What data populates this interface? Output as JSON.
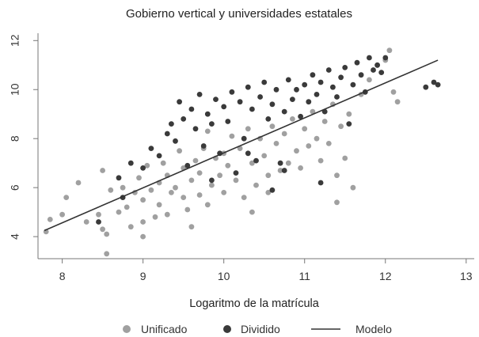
{
  "chart_data": {
    "type": "scatter",
    "title": "Gobierno vertical y universidades estatales",
    "xlabel": "Logaritmo de la matrícula",
    "ylabel": "",
    "xlim": [
      7.7,
      13.1
    ],
    "ylim": [
      3.1,
      12.3
    ],
    "xticks": [
      "8",
      "9",
      "10",
      "11",
      "12",
      "13"
    ],
    "xtick_values": [
      8,
      9,
      10,
      11,
      12,
      13
    ],
    "yticks": [
      "4",
      "6",
      "8",
      "10",
      "12"
    ],
    "ytick_values": [
      4,
      6,
      8,
      10,
      12
    ],
    "grid": false,
    "legend_position": "bottom",
    "series": [
      {
        "name": "Unificado",
        "color": "#a0a0a0",
        "points": [
          [
            7.8,
            4.2
          ],
          [
            7.85,
            4.7
          ],
          [
            8.0,
            4.9
          ],
          [
            8.05,
            5.6
          ],
          [
            8.2,
            6.2
          ],
          [
            8.3,
            4.6
          ],
          [
            8.45,
            4.9
          ],
          [
            8.5,
            4.3
          ],
          [
            8.55,
            4.1
          ],
          [
            8.55,
            3.3
          ],
          [
            8.6,
            5.9
          ],
          [
            8.7,
            5.0
          ],
          [
            8.75,
            6.0
          ],
          [
            8.8,
            5.2
          ],
          [
            8.85,
            4.4
          ],
          [
            8.9,
            5.8
          ],
          [
            8.95,
            6.4
          ],
          [
            9.0,
            5.5
          ],
          [
            9.0,
            4.6
          ],
          [
            9.05,
            6.9
          ],
          [
            9.1,
            5.9
          ],
          [
            9.15,
            4.8
          ],
          [
            9.2,
            6.2
          ],
          [
            9.2,
            5.3
          ],
          [
            9.25,
            7.0
          ],
          [
            9.3,
            6.5
          ],
          [
            9.3,
            4.9
          ],
          [
            9.35,
            5.8
          ],
          [
            9.4,
            6.0
          ],
          [
            9.45,
            7.5
          ],
          [
            9.5,
            5.6
          ],
          [
            9.5,
            6.8
          ],
          [
            9.55,
            5.1
          ],
          [
            9.6,
            6.3
          ],
          [
            9.65,
            7.1
          ],
          [
            9.7,
            5.7
          ],
          [
            9.7,
            6.6
          ],
          [
            9.75,
            7.6
          ],
          [
            9.8,
            5.3
          ],
          [
            9.85,
            6.1
          ],
          [
            9.9,
            7.2
          ],
          [
            9.95,
            6.5
          ],
          [
            10.0,
            5.8
          ],
          [
            10.0,
            7.4
          ],
          [
            10.05,
            6.9
          ],
          [
            10.1,
            8.1
          ],
          [
            10.15,
            6.3
          ],
          [
            10.2,
            7.6
          ],
          [
            10.25,
            5.6
          ],
          [
            10.3,
            8.4
          ],
          [
            10.35,
            7.0
          ],
          [
            10.4,
            6.1
          ],
          [
            10.45,
            8.0
          ],
          [
            10.5,
            7.3
          ],
          [
            10.55,
            5.8
          ],
          [
            10.55,
            6.5
          ],
          [
            10.6,
            8.5
          ],
          [
            10.65,
            7.8
          ],
          [
            10.7,
            6.7
          ],
          [
            10.75,
            8.2
          ],
          [
            10.8,
            7.0
          ],
          [
            10.85,
            8.8
          ],
          [
            10.9,
            7.5
          ],
          [
            10.95,
            6.8
          ],
          [
            11.0,
            8.4
          ],
          [
            11.05,
            7.7
          ],
          [
            11.1,
            9.1
          ],
          [
            11.15,
            8.0
          ],
          [
            11.2,
            7.1
          ],
          [
            11.25,
            8.7
          ],
          [
            11.3,
            7.8
          ],
          [
            11.35,
            9.4
          ],
          [
            11.4,
            6.5
          ],
          [
            11.45,
            8.5
          ],
          [
            11.5,
            7.2
          ],
          [
            11.55,
            9.0
          ],
          [
            11.6,
            6.0
          ],
          [
            11.7,
            9.8
          ],
          [
            11.8,
            10.4
          ],
          [
            11.9,
            11.0
          ],
          [
            12.0,
            11.2
          ],
          [
            12.05,
            11.6
          ],
          [
            12.1,
            9.9
          ],
          [
            12.15,
            9.5
          ],
          [
            11.4,
            5.4
          ],
          [
            9.6,
            4.4
          ],
          [
            10.35,
            5.0
          ],
          [
            9.0,
            4.0
          ],
          [
            8.5,
            6.7
          ],
          [
            9.8,
            8.3
          ]
        ]
      },
      {
        "name": "Dividido",
        "color": "#3a3a3a",
        "points": [
          [
            8.45,
            4.6
          ],
          [
            8.7,
            6.4
          ],
          [
            8.75,
            5.6
          ],
          [
            8.85,
            7.0
          ],
          [
            9.0,
            6.8
          ],
          [
            9.1,
            7.6
          ],
          [
            9.2,
            7.3
          ],
          [
            9.3,
            8.2
          ],
          [
            9.35,
            8.6
          ],
          [
            9.4,
            7.9
          ],
          [
            9.45,
            9.5
          ],
          [
            9.5,
            8.8
          ],
          [
            9.55,
            6.9
          ],
          [
            9.6,
            9.2
          ],
          [
            9.65,
            8.4
          ],
          [
            9.7,
            9.8
          ],
          [
            9.75,
            7.7
          ],
          [
            9.8,
            9.0
          ],
          [
            9.85,
            8.6
          ],
          [
            9.9,
            9.6
          ],
          [
            9.95,
            7.4
          ],
          [
            10.0,
            9.3
          ],
          [
            10.05,
            8.7
          ],
          [
            10.1,
            9.9
          ],
          [
            10.15,
            6.6
          ],
          [
            10.2,
            9.5
          ],
          [
            10.25,
            8.0
          ],
          [
            10.3,
            10.1
          ],
          [
            10.35,
            9.2
          ],
          [
            10.4,
            7.1
          ],
          [
            10.45,
            9.7
          ],
          [
            10.5,
            10.3
          ],
          [
            10.55,
            8.8
          ],
          [
            10.6,
            9.4
          ],
          [
            10.65,
            10.0
          ],
          [
            10.7,
            7.0
          ],
          [
            10.75,
            9.1
          ],
          [
            10.8,
            10.4
          ],
          [
            10.85,
            9.6
          ],
          [
            10.9,
            10.0
          ],
          [
            10.95,
            8.9
          ],
          [
            11.0,
            10.2
          ],
          [
            11.05,
            9.5
          ],
          [
            11.1,
            10.6
          ],
          [
            11.15,
            9.8
          ],
          [
            11.2,
            10.3
          ],
          [
            11.25,
            9.1
          ],
          [
            11.3,
            10.8
          ],
          [
            11.35,
            10.1
          ],
          [
            11.4,
            9.7
          ],
          [
            11.45,
            10.5
          ],
          [
            11.5,
            10.9
          ],
          [
            11.55,
            8.6
          ],
          [
            11.6,
            10.2
          ],
          [
            11.65,
            11.1
          ],
          [
            11.7,
            10.6
          ],
          [
            11.75,
            9.9
          ],
          [
            11.8,
            11.3
          ],
          [
            11.85,
            10.8
          ],
          [
            11.9,
            11.0
          ],
          [
            11.95,
            10.7
          ],
          [
            12.0,
            11.3
          ],
          [
            12.5,
            10.1
          ],
          [
            12.6,
            10.3
          ],
          [
            12.65,
            10.2
          ],
          [
            10.6,
            5.9
          ],
          [
            10.3,
            7.4
          ],
          [
            9.85,
            6.3
          ],
          [
            11.2,
            6.2
          ],
          [
            10.75,
            6.7
          ]
        ]
      }
    ],
    "line": {
      "name": "Modelo",
      "color": "#333333",
      "points": [
        [
          7.78,
          4.25
        ],
        [
          12.65,
          11.2
        ]
      ]
    }
  }
}
